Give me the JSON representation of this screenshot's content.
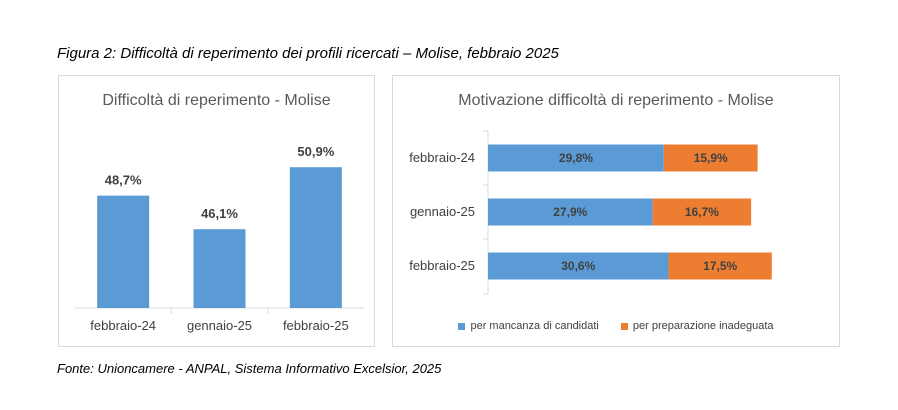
{
  "figure_title": "Figura 2: Difficoltà di reperimento dei profili ricercati – Molise, febbraio 2025",
  "source": "Fonte: Unioncamere - ANPAL, Sistema Informativo Excelsior, 2025",
  "colors": {
    "blue": "#5b9bd5",
    "orange": "#ed7d31"
  },
  "chart_data": [
    {
      "type": "bar",
      "title": "Difficoltà di reperimento - Molise",
      "categories": [
        "febbraio-24",
        "gennaio-25",
        "febbraio-25"
      ],
      "values": [
        48.7,
        46.1,
        50.9
      ],
      "value_labels": [
        "48,7%",
        "46,1%",
        "50,9%"
      ],
      "ylim": [
        40,
        52
      ],
      "grid": false,
      "color": "#5b9bd5"
    },
    {
      "type": "bar",
      "orientation": "horizontal",
      "stacked": true,
      "title": "Motivazione difficoltà di reperimento - Molise",
      "categories": [
        "febbraio-24",
        "gennaio-25",
        "febbraio-25"
      ],
      "series": [
        {
          "name": "per mancanza di candidati",
          "values": [
            29.8,
            27.9,
            30.6
          ],
          "labels": [
            "29,8%",
            "27,9%",
            "30,6%"
          ],
          "color": "#5b9bd5"
        },
        {
          "name": "per preparazione inadeguata",
          "values": [
            15.9,
            16.7,
            17.5
          ],
          "labels": [
            "15,9%",
            "16,7%",
            "17,5%"
          ],
          "color": "#ed7d31"
        }
      ],
      "xlim": [
        0,
        50
      ],
      "grid": false,
      "legend_position": "bottom"
    }
  ]
}
